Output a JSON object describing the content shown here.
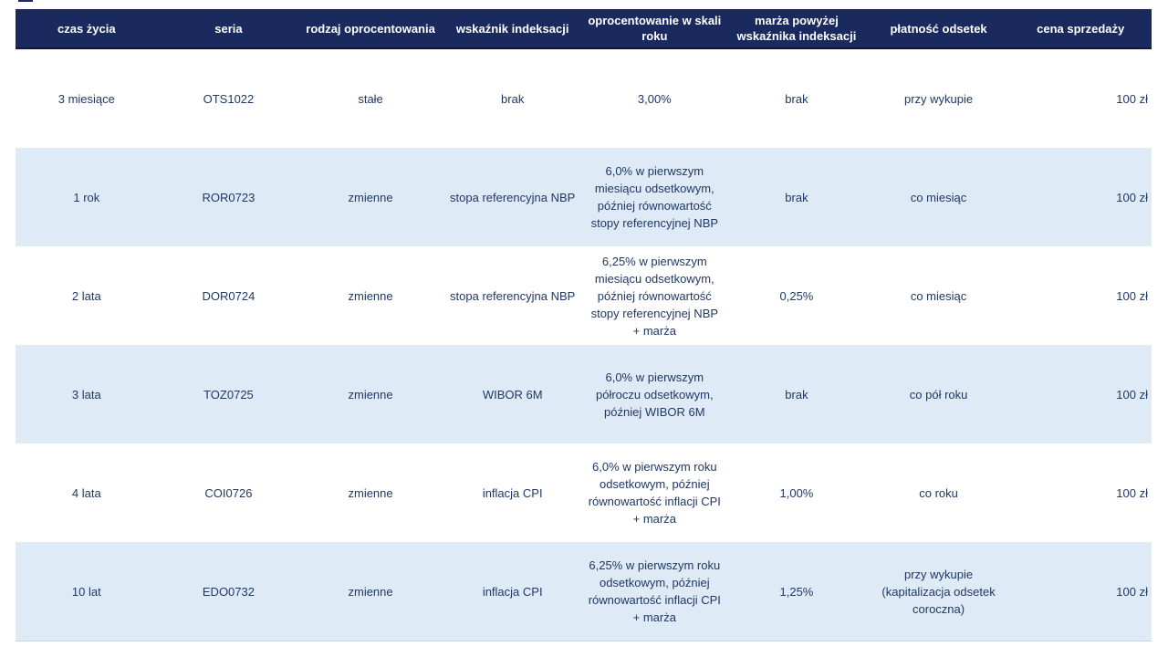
{
  "table": {
    "title_semantic": "retail-treasury-bonds-comparison",
    "header_bg": "#1b2a5e",
    "header_text_color": "#ffffff",
    "body_text_color": "#1f3864",
    "zebra_row_color": "#deeaf6",
    "currency_unit": "zł",
    "columns": [
      {
        "key": "czas-zycia",
        "label": "czas życia"
      },
      {
        "key": "seria",
        "label": "seria"
      },
      {
        "key": "rodzaj-oprocentowania",
        "label": "rodzaj oprocentowania"
      },
      {
        "key": "wskaznik-indeksacji",
        "label": "wskaźnik indeksacji"
      },
      {
        "key": "oprocentowanie-w-skali-roku",
        "label": "oprocentowanie w skali roku"
      },
      {
        "key": "marza-powyzej-wskaznika",
        "label": "marża powyżej wskaźnika indeksacji"
      },
      {
        "key": "platnosc-odsetek",
        "label": "płatność odsetek"
      },
      {
        "key": "cena-sprzedazy",
        "label": "cena sprzedaży"
      }
    ],
    "rows": [
      {
        "shaded": false,
        "cells": [
          "3 miesiące",
          "OTS1022",
          "stałe",
          "brak",
          "3,00%",
          "brak",
          "przy wykupie",
          "100 zł"
        ]
      },
      {
        "shaded": true,
        "cells": [
          "1 rok",
          "ROR0723",
          "zmienne",
          "stopa referencyjna NBP",
          "6,0% w pierwszym miesiącu odsetkowym, później równowartość stopy referencyjnej NBP",
          "brak",
          "co miesiąc",
          "100 zł"
        ]
      },
      {
        "shaded": false,
        "cells": [
          "2 lata",
          "DOR0724",
          "zmienne",
          "stopa referencyjna NBP",
          "6,25% w pierwszym miesiącu odsetkowym, później równowartość stopy referencyjnej NBP + marża",
          "0,25%",
          "co miesiąc",
          "100 zł"
        ]
      },
      {
        "shaded": true,
        "cells": [
          "3 lata",
          "TOZ0725",
          "zmienne",
          "WIBOR 6M",
          "6,0% w pierwszym półroczu odsetkowym, później WIBOR 6M",
          "brak",
          "co pół roku",
          "100 zł"
        ]
      },
      {
        "shaded": false,
        "cells": [
          "4 lata",
          "COI0726",
          "zmienne",
          "inflacja CPI",
          "6,0% w pierwszym roku odsetkowym, później równowartość inflacji CPI + marża",
          "1,00%",
          "co roku",
          "100 zł"
        ]
      },
      {
        "shaded": true,
        "cells": [
          "10 lat",
          "EDO0732",
          "zmienne",
          "inflacja CPI",
          "6,25% w pierwszym roku odsetkowym, później równowartość inflacji CPI + marża",
          "1,25%",
          "przy wykupie (kapitalizacja odsetek coroczna)",
          "100 zł"
        ]
      }
    ]
  }
}
